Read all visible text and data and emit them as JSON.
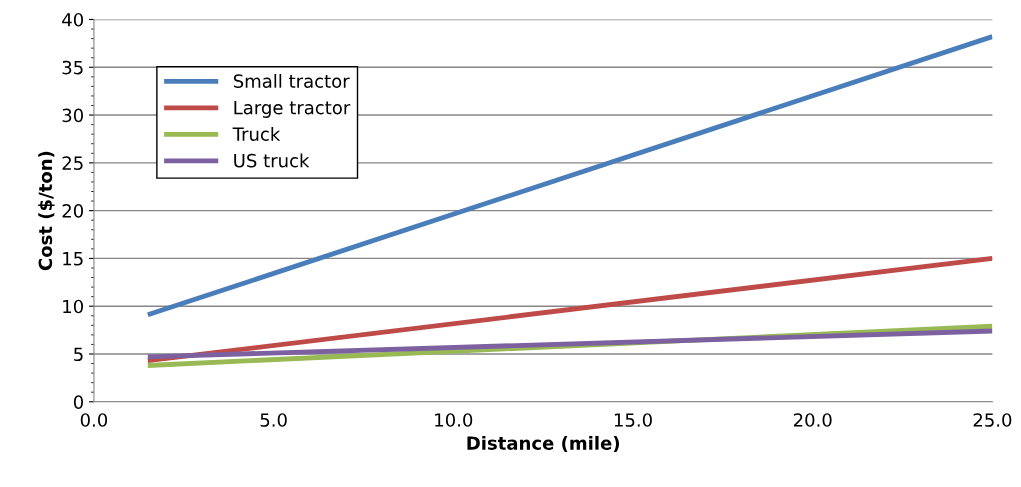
{
  "chart_data": {
    "type": "line",
    "xlabel": "Distance (mile)",
    "ylabel": "Cost ($/ton)",
    "xlim": [
      0,
      25
    ],
    "xticks": [
      {
        "value": 0,
        "label": "0.0"
      },
      {
        "value": 5,
        "label": "5.0"
      },
      {
        "value": 10,
        "label": "10.0"
      },
      {
        "value": 15,
        "label": "15.0"
      },
      {
        "value": 20,
        "label": "20.0"
      },
      {
        "value": 25,
        "label": "25.0"
      }
    ],
    "x": [
      1.5,
      25
    ],
    "ylim": [
      0,
      40
    ],
    "yticks": [
      0,
      5,
      10,
      15,
      20,
      25,
      30,
      35,
      40
    ],
    "grid": "y",
    "legend": "top left",
    "marker": "none",
    "line_style": "solid",
    "series": [
      {
        "name": "Small tractor",
        "color": "#4a7ebb",
        "values": [
          9.1,
          38.2
        ]
      },
      {
        "name": "Large tractor",
        "color": "#be4b48",
        "values": [
          4.3,
          15.0
        ]
      },
      {
        "name": "Truck",
        "color": "#98b954",
        "values": [
          3.8,
          7.9
        ]
      },
      {
        "name": "US truck",
        "color": "#7d60a0",
        "values": [
          4.7,
          7.4
        ]
      }
    ]
  }
}
